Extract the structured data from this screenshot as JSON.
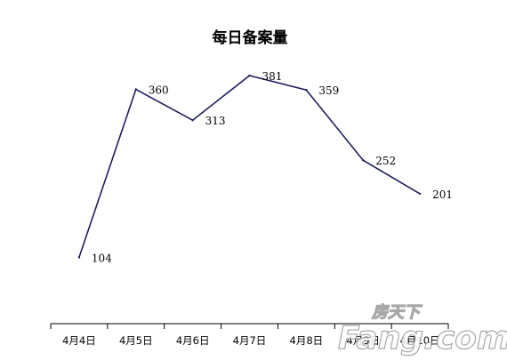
{
  "chart_data": {
    "type": "line",
    "title": "每日备案量",
    "categories": [
      "4月4日",
      "4月5日",
      "4月6日",
      "4月7日",
      "4月8日",
      "4月9日",
      "4月10日"
    ],
    "series": [
      {
        "values": [
          104,
          360,
          313,
          381,
          359,
          252,
          201
        ]
      }
    ],
    "value_labels": [
      "104",
      "360",
      "313",
      "381",
      "359",
      "252",
      "201"
    ],
    "ylim": [
      0,
      400
    ],
    "xlabel": "",
    "ylabel": "",
    "grid": false,
    "legend": "none",
    "line_color": "#1f1f5e"
  },
  "watermark": {
    "text": "Fang.com",
    "chinese": "房天下"
  }
}
